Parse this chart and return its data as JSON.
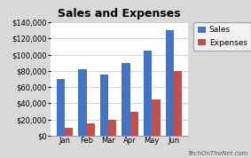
{
  "title": "Sales and Expenses",
  "categories": [
    "Jan",
    "Feb",
    "Mar",
    "Apr",
    "May",
    "Jun"
  ],
  "sales": [
    70000,
    82000,
    75000,
    90000,
    105000,
    130000
  ],
  "expenses": [
    10000,
    15000,
    20000,
    30000,
    45000,
    80000
  ],
  "bar_colors": [
    "#4472C4",
    "#C0504D"
  ],
  "ylim": [
    0,
    140000
  ],
  "yticks": [
    0,
    20000,
    40000,
    60000,
    80000,
    100000,
    120000,
    140000
  ],
  "legend_labels": [
    "Sales",
    "Expenses"
  ],
  "background_color": "#D9D9D9",
  "plot_bg_color": "#FFFFFF",
  "grid_color": "#CCCCCC",
  "watermark": "TechOnTheNet.com",
  "title_fontsize": 9,
  "tick_fontsize": 6,
  "legend_fontsize": 6.5
}
